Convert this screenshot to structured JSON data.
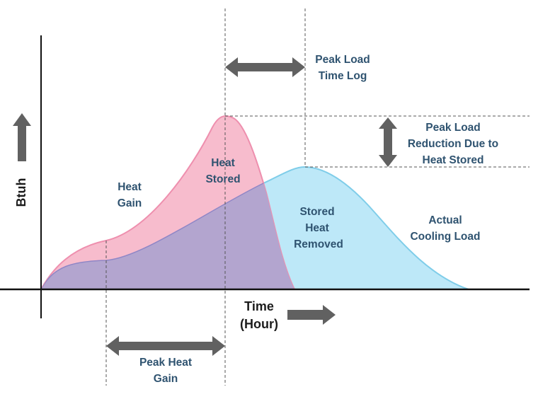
{
  "labels": {
    "y_axis": "Btuh",
    "x_axis_line1": "Time",
    "x_axis_line2": "(Hour)",
    "heat_gain_1": "Heat",
    "heat_gain_2": "Gain",
    "heat_stored_1": "Heat",
    "heat_stored_2": "Stored",
    "stored_heat_removed_1": "Stored",
    "stored_heat_removed_2": "Heat",
    "stored_heat_removed_3": "Removed",
    "actual_cooling_load_1": "Actual",
    "actual_cooling_load_2": "Cooling Load",
    "peak_load_time_log_1": "Peak Load",
    "peak_load_time_log_2": "Time Log",
    "peak_load_reduction_1": "Peak Load",
    "peak_load_reduction_2": "Reduction Due to",
    "peak_load_reduction_3": "Heat Stored",
    "peak_heat_gain_1": "Peak Heat",
    "peak_heat_gain_2": "Gain"
  },
  "colors": {
    "heat_gain_fill": "#f7bccd",
    "heat_gain_stroke": "#ee8fae",
    "cooling_load_fill": "#bde8f8",
    "cooling_load_stroke": "#7fcde9",
    "overlap_fill": "#b3a5cf",
    "arrow": "#616161",
    "label_text": "#2f5370"
  }
}
